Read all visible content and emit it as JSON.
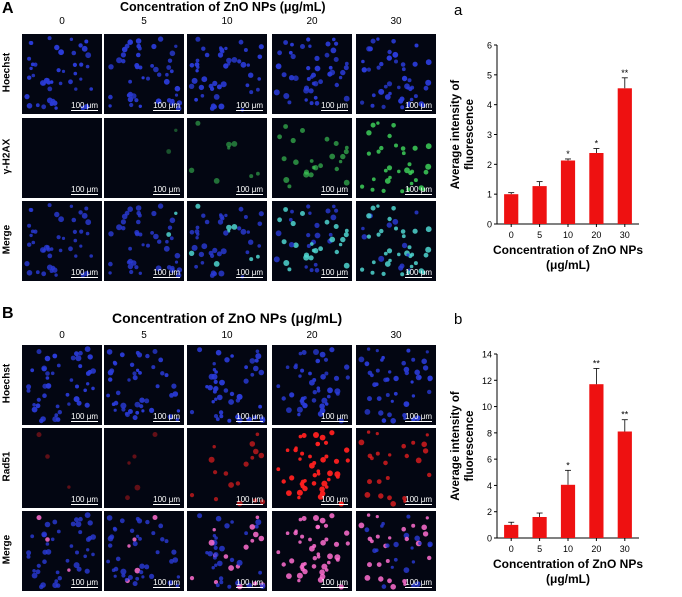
{
  "panel_a": {
    "letter": "A",
    "title": "Concentration of ZnO NPs (μg/mL)",
    "concentrations": [
      "0",
      "5",
      "10",
      "20",
      "30"
    ],
    "rows": [
      "Hoechst",
      "γ-H2AX",
      "Merge"
    ],
    "scale_bar": "100 μm",
    "colors": {
      "hoechst": "#2a3bd8",
      "gamma_h2ax": "#3fd25a",
      "merge_mix": "#4fd6d0"
    },
    "green_levels": [
      0.0,
      0.05,
      0.3,
      0.45,
      0.8
    ]
  },
  "panel_b": {
    "letter": "B",
    "title": "Concentration of ZnO NPs (μg/mL)",
    "concentrations": [
      "0",
      "5",
      "10",
      "20",
      "30"
    ],
    "rows": [
      "Hoechst",
      "Rad51",
      "Merge"
    ],
    "scale_bar": "100 μm",
    "colors": {
      "hoechst": "#2a3bd8",
      "rad51": "#ff2020",
      "merge_mix": "#ff6fd0"
    },
    "red_levels": [
      0.03,
      0.05,
      0.45,
      1.0,
      0.6
    ]
  },
  "chart_a_letter": "a",
  "chart_b_letter": "b",
  "chart_data": [
    {
      "type": "bar",
      "categories": [
        "0",
        "5",
        "10",
        "20",
        "30"
      ],
      "values": [
        1.0,
        1.27,
        2.13,
        2.38,
        4.55
      ],
      "errors": [
        0.05,
        0.15,
        0.05,
        0.15,
        0.35
      ],
      "significance": [
        "",
        "",
        "*",
        "*",
        "**"
      ],
      "title": "",
      "xlabel": "Concentration of ZnO NPs (μg/mL)",
      "xlabel_lines": [
        "Concentration of ZnO NPs",
        "(μg/mL)"
      ],
      "ylabel": "Average intensity of fluorescence",
      "ylabel_lines": [
        "Average intensity of",
        "fluorescence"
      ],
      "ylim": [
        0,
        6
      ],
      "yticks": [
        0,
        1,
        2,
        3,
        4,
        5,
        6
      ],
      "bar_color": "#ee1111",
      "grid": false
    },
    {
      "type": "bar",
      "categories": [
        "0",
        "5",
        "10",
        "20",
        "30"
      ],
      "values": [
        1.0,
        1.6,
        4.05,
        11.7,
        8.1
      ],
      "errors": [
        0.2,
        0.3,
        1.1,
        1.2,
        0.9
      ],
      "significance": [
        "",
        "",
        "*",
        "**",
        "**"
      ],
      "title": "",
      "xlabel": "Concentration of ZnO NPs (μg/mL)",
      "xlabel_lines": [
        "Concentration of ZnO NPs",
        "(μg/mL)"
      ],
      "ylabel": "Average intensity of fluorescence",
      "ylabel_lines": [
        "Average intensity of",
        "fluorescence"
      ],
      "ylim": [
        0,
        14
      ],
      "yticks": [
        0,
        2,
        4,
        6,
        8,
        10,
        12,
        14
      ],
      "bar_color": "#ee1111",
      "grid": false
    }
  ]
}
